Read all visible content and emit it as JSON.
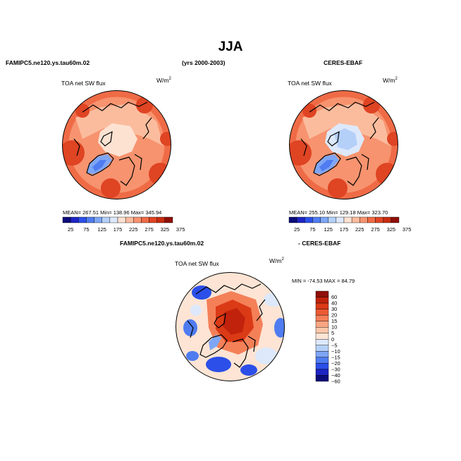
{
  "title": "JJA",
  "header": {
    "model": "FAMIPC5.ne120.ys.tau60m.02",
    "years": "(yrs 2000-2003)",
    "obs": "CERES-EBAF",
    "diff_model": "FAMIPC5.ne120.ys.tau60m.02",
    "diff_obs": "- CERES-EBAF"
  },
  "colors": {
    "seq": [
      "#0b0b7a",
      "#1d24c4",
      "#2b4fe8",
      "#4f7cf0",
      "#7ea6f5",
      "#b5d0f8",
      "#dde9fb",
      "#fde2d2",
      "#fbbc9e",
      "#f7936f",
      "#ef6b46",
      "#df4423",
      "#c62b10",
      "#8f0f08"
    ],
    "diff": [
      "#8f0f08",
      "#c0220b",
      "#db3a16",
      "#ec5a33",
      "#f48058",
      "#f9a583",
      "#fcc7ab",
      "#fde4d4",
      "#dde9fb",
      "#b5d0f8",
      "#7ea6f5",
      "#4f7cf0",
      "#2b4fe8",
      "#1d24c4",
      "#0b0b7a"
    ]
  },
  "chart_data": [
    {
      "type": "heatmap",
      "projection": "polar-stereographic-north",
      "title": "TOA net SW flux",
      "units": "W/m",
      "units_sup": "2",
      "stats_text": "MEAN= 267.51   Min= 138.96   Max= 345.94",
      "stats": {
        "mean": 267.51,
        "min": 138.96,
        "max": 345.94
      },
      "colorbar_levels": [
        25,
        50,
        75,
        100,
        125,
        150,
        175,
        200,
        225,
        250,
        275,
        300,
        325,
        350,
        375
      ],
      "colorbar_labels": [
        "25",
        "75",
        "125",
        "175",
        "225",
        "275",
        "325",
        "375"
      ]
    },
    {
      "type": "heatmap",
      "projection": "polar-stereographic-north",
      "title": "TOA net SW flux",
      "units": "W/m",
      "units_sup": "2",
      "stats_text": "MEAN= 255.10   Min= 129.18   Max= 323.70",
      "stats": {
        "mean": 255.1,
        "min": 129.18,
        "max": 323.7
      },
      "colorbar_levels": [
        25,
        50,
        75,
        100,
        125,
        150,
        175,
        200,
        225,
        250,
        275,
        300,
        325,
        350,
        375
      ],
      "colorbar_labels": [
        "25",
        "75",
        "125",
        "175",
        "225",
        "275",
        "325",
        "375"
      ]
    },
    {
      "type": "heatmap",
      "projection": "polar-stereographic-north",
      "title": "TOA net SW flux",
      "units": "W/m",
      "units_sup": "2",
      "stats_text": "MIN =  -74.53  MAX =   84.79",
      "stats": {
        "min": -74.53,
        "max": 84.79
      },
      "colorbar_levels": [
        60,
        40,
        30,
        20,
        15,
        10,
        5,
        0,
        -5,
        -10,
        -15,
        -20,
        -30,
        -40,
        -60
      ],
      "colorbar_labels": [
        "60",
        "40",
        "30",
        "20",
        "15",
        "10",
        "5",
        "0",
        "−5",
        "−10",
        "−15",
        "−20",
        "−30",
        "−40",
        "−60"
      ]
    }
  ]
}
